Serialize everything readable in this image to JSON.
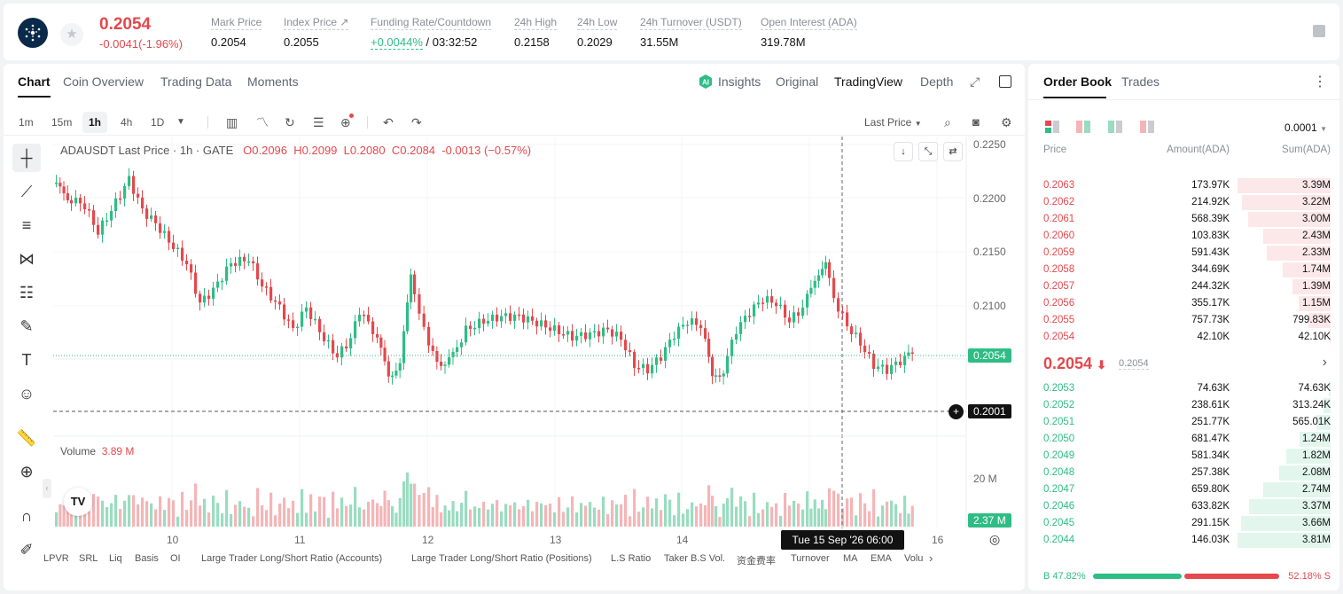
{
  "ticker": {
    "last": "0.2054",
    "change": "-0.0041(-1.96%)",
    "stats": [
      {
        "label": "Mark Price",
        "value": "0.2054"
      },
      {
        "label": "Index Price ↗",
        "value": "0.2055"
      },
      {
        "label": "Funding Rate/Countdown",
        "value": "+0.0044%",
        "value2": "/ 03:32:52"
      },
      {
        "label": "24h High",
        "value": "0.2158"
      },
      {
        "label": "24h Low",
        "value": "0.2029"
      },
      {
        "label": "24h Turnover (USDT)",
        "value": "31.55M"
      },
      {
        "label": "Open Interest (ADA)",
        "value": "319.78M"
      }
    ]
  },
  "chart_tabs": [
    "Chart",
    "Coin Overview",
    "Trading Data",
    "Moments"
  ],
  "view_tabs": [
    "Insights",
    "Original",
    "TradingView",
    "Depth"
  ],
  "timeframes": [
    "1m",
    "15m",
    "1h",
    "4h",
    "1D"
  ],
  "price_type": "Last Price",
  "legend": {
    "symbol": "ADAUSDT Last Price · 1h · GATE",
    "o": "O0.2096",
    "h": "H0.2099",
    "l": "L0.2080",
    "c": "C0.2084",
    "chg": "-0.0013 (−0.57%)"
  },
  "volume_label": "Volume",
  "volume_value": "3.89 M",
  "axis_prices": [
    "0.2250",
    "0.2200",
    "0.2150",
    "0.2100"
  ],
  "axis_vol": "20 M",
  "current_tag": "0.2054",
  "cross_tag": "0.2001",
  "vol_tag": "2.37 M",
  "x_labels": [
    "10",
    "11",
    "12",
    "13",
    "14",
    "16"
  ],
  "crosshair_time": "Tue 15 Sep '26   06:00",
  "indicators": [
    "LPVR",
    "SRL",
    "Liq",
    "Basis",
    "OI",
    "Large Trader Long/Short Ratio (Accounts)",
    "Large Trader Long/Short Ratio (Positions)",
    "L.S Ratio",
    "Taker B.S Vol.",
    "资金费率",
    "Turnover",
    "MA",
    "EMA",
    "Volu"
  ],
  "book": {
    "tabs": [
      "Order Book",
      "Trades"
    ],
    "precision": "0.0001",
    "headers": [
      "Price",
      "Amount(ADA)",
      "Sum(ADA)"
    ],
    "asks": [
      [
        "0.2063",
        "173.97K",
        "3.39M",
        1.0
      ],
      [
        "0.2062",
        "214.92K",
        "3.22M",
        0.95
      ],
      [
        "0.2061",
        "568.39K",
        "3.00M",
        0.89
      ],
      [
        "0.2060",
        "103.83K",
        "2.43M",
        0.72
      ],
      [
        "0.2059",
        "591.43K",
        "2.33M",
        0.69
      ],
      [
        "0.2058",
        "344.69K",
        "1.74M",
        0.51
      ],
      [
        "0.2057",
        "244.32K",
        "1.39M",
        0.41
      ],
      [
        "0.2056",
        "355.17K",
        "1.15M",
        0.34
      ],
      [
        "0.2055",
        "757.73K",
        "799.83K",
        0.24
      ],
      [
        "0.2054",
        "42.10K",
        "42.10K",
        0.01
      ]
    ],
    "mid": "0.2054",
    "mark": "0.2054",
    "bids": [
      [
        "0.2053",
        "74.63K",
        "74.63K",
        0.02
      ],
      [
        "0.2052",
        "238.61K",
        "313.24K",
        0.08
      ],
      [
        "0.2051",
        "251.77K",
        "565.01K",
        0.15
      ],
      [
        "0.2050",
        "681.47K",
        "1.24M",
        0.33
      ],
      [
        "0.2049",
        "581.34K",
        "1.82M",
        0.48
      ],
      [
        "0.2048",
        "257.38K",
        "2.08M",
        0.55
      ],
      [
        "0.2047",
        "659.80K",
        "2.74M",
        0.72
      ],
      [
        "0.2046",
        "633.82K",
        "3.37M",
        0.88
      ],
      [
        "0.2045",
        "291.15K",
        "3.66M",
        0.96
      ],
      [
        "0.2044",
        "146.03K",
        "3.81M",
        1.0
      ]
    ],
    "buy_ratio": "B 47.82%",
    "sell_ratio": "52.18% S",
    "buy_fraction": 0.4782
  }
}
